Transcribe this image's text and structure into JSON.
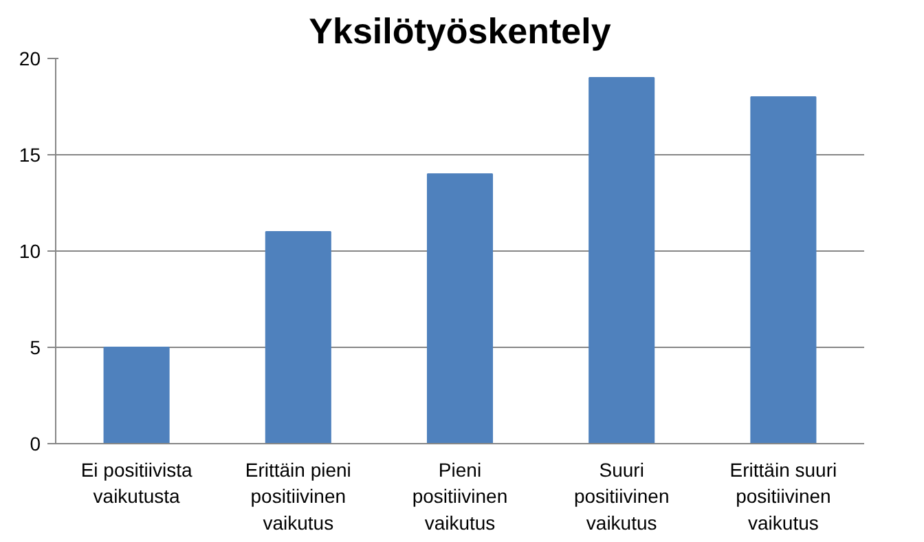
{
  "chart_data": {
    "type": "bar",
    "title": "Yksilötyöskentely",
    "categories": [
      "Ei positiivista\nvaikutusta",
      "Erittäin pieni\npositiivinen\nvaikutus",
      "Pieni\npositiivinen\nvaikutus",
      "Suuri\npositiivinen\nvaikutus",
      "Erittäin suuri\npositiivinen\nvaikutus"
    ],
    "values": [
      5,
      11,
      14,
      19,
      18
    ],
    "color": "#4f81bd",
    "ylim": [
      0,
      20
    ],
    "yticks": [
      0,
      5,
      10,
      15,
      20
    ],
    "grid": "y"
  }
}
